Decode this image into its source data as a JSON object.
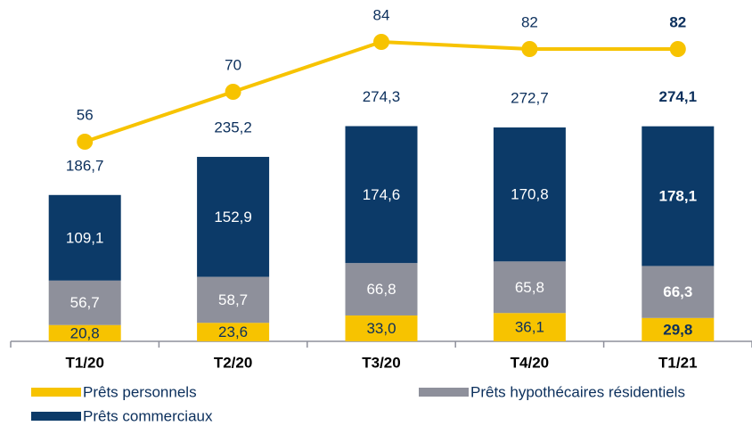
{
  "chart_data": {
    "type": "stacked-bar-line",
    "categories": [
      "T1/20",
      "T2/20",
      "T3/20",
      "T4/20",
      "T1/21"
    ],
    "emphasis_index": 4,
    "ylim": [
      0,
      400
    ],
    "y2lim": [
      0,
      88
    ],
    "series": [
      {
        "name": "Prêts personnels",
        "color": "#f7c300",
        "label_color": "#0b2f5c",
        "values": [
          20.8,
          23.6,
          33.0,
          36.1,
          29.8
        ],
        "value_labels": [
          "20,8",
          "23,6",
          "33,0",
          "36,1",
          "29,8"
        ]
      },
      {
        "name": "Prêts hypothécaires résidentiels",
        "color": "#8e909b",
        "label_color": "#ffffff",
        "values": [
          56.7,
          58.7,
          66.8,
          65.8,
          66.3
        ],
        "value_labels": [
          "56,7",
          "58,7",
          "66,8",
          "65,8",
          "66,3"
        ]
      },
      {
        "name": "Prêts commerciaux",
        "color": "#0c3a68",
        "label_color": "#ffffff",
        "values": [
          109.1,
          152.9,
          174.6,
          170.8,
          178.1
        ],
        "value_labels": [
          "109,1",
          "152,9",
          "174,6",
          "170,8",
          "178,1"
        ]
      }
    ],
    "totals": {
      "values": [
        186.7,
        235.2,
        274.3,
        272.7,
        274.1
      ],
      "value_labels": [
        "186,7",
        "235,2",
        "274,3",
        "272,7",
        "274,1"
      ]
    },
    "line": {
      "color": "#f7c300",
      "axis": "y2",
      "values": [
        56,
        70,
        84,
        82,
        82
      ]
    }
  }
}
